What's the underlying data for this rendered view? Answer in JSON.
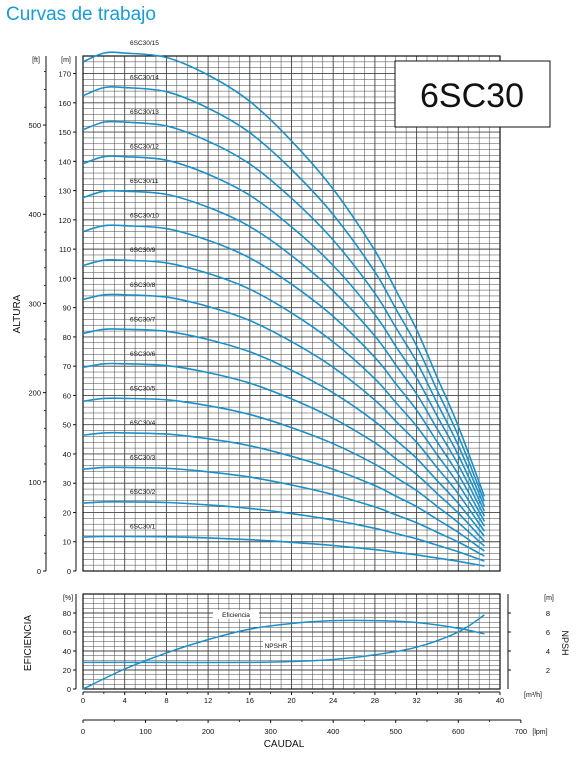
{
  "page_title": "Curvas de trabajo",
  "model": "6SC30",
  "chart_data": [
    {
      "type": "line",
      "id": "head",
      "ylabel": "ALTURA",
      "left_axis": {
        "unit": "[ft]",
        "ticks": [
          0,
          100,
          200,
          300,
          400,
          500
        ]
      },
      "y_axis": {
        "unit": "[m]",
        "range": [
          0,
          176
        ],
        "ticks": [
          0,
          10,
          20,
          30,
          40,
          50,
          60,
          70,
          80,
          90,
          100,
          110,
          120,
          130,
          140,
          150,
          160,
          170
        ]
      },
      "x": [
        0,
        2,
        4,
        8,
        12,
        16,
        20,
        24,
        28,
        30,
        32,
        34,
        36,
        38.5
      ],
      "series": [
        {
          "name": "6SC30/1",
          "values": [
            11.6,
            11.8,
            11.8,
            11.7,
            11.3,
            10.7,
            9.8,
            8.7,
            7.3,
            6.4,
            5.5,
            4.4,
            3.3,
            1.7
          ]
        },
        {
          "name": "6SC30/2",
          "values": [
            23.2,
            23.6,
            23.6,
            23.4,
            22.6,
            21.4,
            19.6,
            17.4,
            14.6,
            12.8,
            11.0,
            8.8,
            6.6,
            3.4
          ]
        },
        {
          "name": "6SC30/3",
          "values": [
            34.8,
            35.4,
            35.4,
            35.1,
            33.9,
            32.1,
            29.4,
            26.1,
            21.9,
            19.2,
            16.5,
            13.2,
            9.9,
            5.1
          ]
        },
        {
          "name": "6SC30/4",
          "values": [
            46.4,
            47.2,
            47.2,
            46.8,
            45.2,
            42.8,
            39.2,
            34.8,
            29.2,
            25.6,
            22.0,
            17.6,
            13.2,
            6.8
          ]
        },
        {
          "name": "6SC30/5",
          "values": [
            58.0,
            59.0,
            59.0,
            58.5,
            56.5,
            53.5,
            49.0,
            43.5,
            36.5,
            32.0,
            27.5,
            22.0,
            16.5,
            8.5
          ]
        },
        {
          "name": "6SC30/6",
          "values": [
            69.6,
            70.8,
            70.8,
            70.2,
            67.8,
            64.2,
            58.8,
            52.2,
            43.8,
            38.4,
            33.0,
            26.4,
            19.8,
            10.2
          ]
        },
        {
          "name": "6SC30/7",
          "values": [
            81.2,
            82.6,
            82.6,
            81.9,
            79.1,
            74.9,
            68.6,
            60.9,
            51.1,
            44.8,
            38.5,
            30.8,
            23.1,
            11.9
          ]
        },
        {
          "name": "6SC30/8",
          "values": [
            92.8,
            94.4,
            94.4,
            93.6,
            90.4,
            85.6,
            78.4,
            69.6,
            58.4,
            51.2,
            44.0,
            35.2,
            26.4,
            13.6
          ]
        },
        {
          "name": "6SC30/9",
          "values": [
            104.4,
            106.2,
            106.2,
            105.3,
            101.7,
            96.3,
            88.2,
            78.3,
            65.7,
            57.6,
            49.5,
            39.6,
            29.7,
            15.3
          ]
        },
        {
          "name": "6SC30/10",
          "values": [
            116.0,
            118.0,
            118.0,
            117.0,
            113.0,
            107.0,
            98.0,
            87.0,
            73.0,
            64.0,
            55.0,
            44.0,
            33.0,
            17.0
          ]
        },
        {
          "name": "6SC30/11",
          "values": [
            127.6,
            129.8,
            129.8,
            128.7,
            124.3,
            117.7,
            107.8,
            95.7,
            80.3,
            70.4,
            60.5,
            48.4,
            36.3,
            18.7
          ]
        },
        {
          "name": "6SC30/12",
          "values": [
            139.2,
            141.6,
            141.6,
            140.4,
            135.6,
            128.4,
            117.6,
            104.4,
            87.6,
            76.8,
            66.0,
            52.8,
            39.6,
            20.4
          ]
        },
        {
          "name": "6SC30/13",
          "values": [
            150.8,
            153.4,
            153.4,
            152.1,
            146.9,
            139.1,
            127.4,
            113.1,
            94.9,
            83.2,
            71.5,
            57.2,
            42.9,
            22.1
          ]
        },
        {
          "name": "6SC30/14",
          "values": [
            162.4,
            165.2,
            165.2,
            163.8,
            158.2,
            149.8,
            137.2,
            121.8,
            102.2,
            89.6,
            77.0,
            61.6,
            46.2,
            23.8
          ]
        },
        {
          "name": "6SC30/15",
          "values": [
            174.0,
            177.0,
            177.0,
            175.5,
            169.5,
            160.5,
            147.0,
            130.5,
            109.5,
            96.0,
            82.5,
            66.0,
            49.5,
            25.5
          ]
        }
      ]
    },
    {
      "type": "line",
      "id": "efficiency",
      "ylabel": "EFICIENCIA",
      "right_label": "NPSH",
      "y_axis": {
        "unit": "[%]",
        "range": [
          0,
          100
        ],
        "ticks": [
          0,
          20,
          40,
          60,
          80
        ]
      },
      "y2_axis": {
        "unit": "[m]",
        "range": [
          0,
          10
        ],
        "ticks": [
          2,
          4,
          6,
          8
        ]
      },
      "x_axis": {
        "unit": "[m³/h]",
        "range": [
          0,
          40
        ],
        "ticks": [
          0,
          4,
          8,
          12,
          16,
          20,
          24,
          28,
          32,
          36,
          40
        ]
      },
      "x2_axis": {
        "unit": "[lpm]",
        "label": "CAUDAL",
        "ticks": [
          0,
          100,
          200,
          300,
          400,
          500,
          600,
          700
        ]
      },
      "series": [
        {
          "name": "Eficiencia",
          "axis": "left",
          "x": [
            0,
            4,
            8,
            12,
            16,
            20,
            24,
            28,
            32,
            36,
            38.5
          ],
          "values": [
            0,
            21,
            38,
            52,
            63,
            69,
            72,
            72,
            70,
            64,
            58
          ]
        },
        {
          "name": "NPSHR",
          "axis": "right",
          "x": [
            0,
            8,
            16,
            20,
            24,
            28,
            32,
            36,
            38.5
          ],
          "values": [
            2.8,
            2.8,
            2.8,
            2.9,
            3.1,
            3.6,
            4.4,
            6.0,
            7.8
          ]
        }
      ]
    }
  ]
}
